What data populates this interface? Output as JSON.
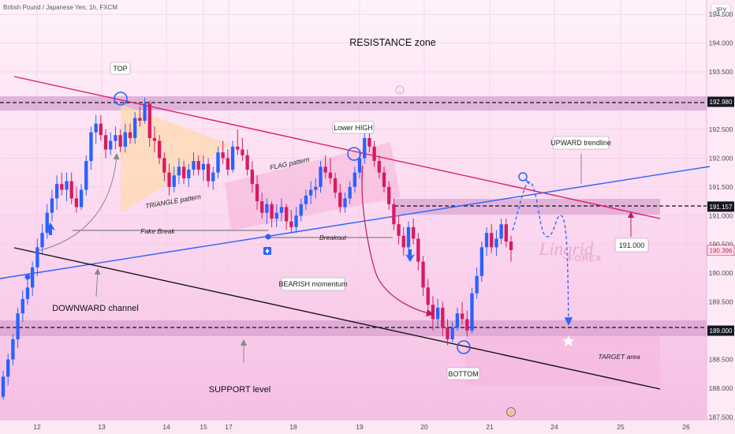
{
  "header": {
    "symbol_title": "British Pound / Japanese Yen, 1h, FXCM"
  },
  "currency_label": "JPY",
  "watermark": {
    "brand": "Lingrid",
    "sub": "FOREX"
  },
  "chart_data": {
    "type": "candlestick",
    "title": "British Pound / Japanese Yen, 1h, FXCM",
    "x_ticks": [
      "12",
      "13",
      "14",
      "15",
      "17",
      "18",
      "19",
      "20",
      "21",
      "24",
      "25",
      "26"
    ],
    "y_ticks": [
      "187.500",
      "188.000",
      "188.500",
      "189.000",
      "189.500",
      "190.000",
      "190.500",
      "191.000",
      "191.500",
      "192.000",
      "192.500",
      "193.000",
      "193.500",
      "194.000",
      "194.500"
    ],
    "ylim": [
      187.45,
      194.75
    ],
    "current_price": "190.396",
    "price_levels": [
      {
        "label": "192.980",
        "value": 192.98
      },
      {
        "label": "191.157",
        "value": 191.157
      },
      {
        "label": "189.000",
        "value": 189.0
      }
    ],
    "series": [
      {
        "values": [
          [
            187.85,
            188.3,
            187.8,
            188.2
          ],
          [
            188.2,
            188.6,
            188.05,
            188.5
          ],
          [
            188.5,
            188.95,
            188.4,
            188.85
          ],
          [
            188.85,
            189.4,
            188.7,
            189.3
          ],
          [
            189.3,
            189.7,
            189.15,
            189.55
          ],
          [
            189.55,
            189.9,
            189.45,
            189.75
          ],
          [
            189.75,
            190.2,
            189.6,
            190.1
          ],
          [
            190.1,
            190.6,
            189.95,
            190.45
          ],
          [
            190.45,
            190.85,
            190.35,
            190.7
          ],
          [
            190.7,
            191.2,
            190.6,
            191.05
          ],
          [
            191.05,
            191.45,
            190.9,
            191.3
          ],
          [
            191.3,
            191.7,
            191.1,
            191.55
          ],
          [
            191.55,
            191.75,
            191.35,
            191.45
          ],
          [
            191.45,
            191.75,
            191.25,
            191.6
          ],
          [
            191.6,
            191.75,
            191.2,
            191.3
          ],
          [
            191.3,
            191.5,
            191.05,
            191.15
          ],
          [
            191.15,
            191.55,
            191.1,
            191.45
          ],
          [
            191.45,
            192.05,
            191.35,
            191.95
          ],
          [
            191.95,
            192.55,
            191.8,
            192.45
          ],
          [
            192.45,
            192.75,
            192.25,
            192.6
          ],
          [
            192.6,
            192.75,
            192.3,
            192.4
          ],
          [
            192.4,
            192.5,
            192.0,
            192.15
          ],
          [
            192.15,
            192.45,
            192.05,
            192.3
          ],
          [
            192.3,
            192.55,
            192.15,
            192.4
          ],
          [
            192.4,
            192.5,
            192.1,
            192.2
          ],
          [
            192.2,
            192.6,
            192.1,
            192.45
          ],
          [
            192.45,
            192.6,
            192.25,
            192.35
          ],
          [
            192.35,
            192.8,
            192.25,
            192.7
          ],
          [
            192.7,
            192.9,
            192.55,
            192.65
          ],
          [
            192.65,
            193.05,
            192.6,
            192.95
          ],
          [
            192.95,
            193.0,
            192.2,
            192.35
          ],
          [
            192.35,
            192.55,
            192.1,
            192.3
          ],
          [
            192.3,
            192.4,
            191.9,
            192.0
          ],
          [
            192.0,
            192.1,
            191.6,
            191.75
          ],
          [
            191.75,
            191.9,
            191.35,
            191.5
          ],
          [
            191.5,
            191.85,
            191.4,
            191.7
          ],
          [
            191.7,
            192.0,
            191.55,
            191.85
          ],
          [
            191.85,
            191.95,
            191.55,
            191.65
          ],
          [
            191.65,
            191.9,
            191.5,
            191.8
          ],
          [
            191.8,
            192.1,
            191.7,
            191.95
          ],
          [
            191.95,
            192.05,
            191.7,
            191.8
          ],
          [
            191.8,
            192.05,
            191.6,
            191.9
          ],
          [
            191.9,
            192.0,
            191.5,
            191.6
          ],
          [
            191.6,
            191.85,
            191.45,
            191.75
          ],
          [
            191.75,
            192.2,
            191.65,
            192.1
          ],
          [
            192.1,
            192.3,
            191.9,
            192.0
          ],
          [
            192.0,
            192.15,
            191.7,
            191.8
          ],
          [
            191.8,
            192.3,
            191.75,
            192.2
          ],
          [
            192.2,
            192.5,
            192.05,
            192.15
          ],
          [
            192.15,
            192.35,
            191.95,
            192.05
          ],
          [
            192.05,
            192.15,
            191.7,
            191.8
          ],
          [
            191.8,
            191.95,
            191.4,
            191.55
          ],
          [
            191.55,
            191.7,
            191.1,
            191.25
          ],
          [
            191.25,
            191.4,
            190.95,
            191.05
          ],
          [
            191.05,
            191.3,
            190.85,
            191.2
          ],
          [
            191.2,
            191.25,
            190.8,
            190.95
          ],
          [
            190.95,
            191.2,
            190.8,
            191.05
          ],
          [
            191.05,
            191.3,
            190.9,
            191.15
          ],
          [
            191.15,
            191.2,
            190.75,
            190.9
          ],
          [
            190.9,
            191.1,
            190.7,
            190.8
          ],
          [
            190.8,
            191.15,
            190.7,
            191.0
          ],
          [
            191.0,
            191.3,
            190.9,
            191.2
          ],
          [
            191.2,
            191.45,
            191.1,
            191.35
          ],
          [
            191.35,
            191.6,
            191.2,
            191.45
          ],
          [
            191.45,
            191.65,
            191.3,
            191.5
          ],
          [
            191.5,
            191.95,
            191.4,
            191.85
          ],
          [
            191.85,
            192.05,
            191.65,
            191.75
          ],
          [
            191.75,
            192.0,
            191.55,
            191.65
          ],
          [
            191.65,
            191.75,
            191.3,
            191.4
          ],
          [
            191.4,
            191.55,
            191.05,
            191.15
          ],
          [
            191.15,
            191.4,
            191.05,
            191.3
          ],
          [
            191.3,
            191.6,
            191.2,
            191.5
          ],
          [
            191.5,
            191.85,
            191.4,
            191.75
          ],
          [
            191.75,
            192.1,
            191.65,
            192.0
          ],
          [
            192.0,
            192.45,
            191.9,
            192.35
          ],
          [
            192.35,
            192.5,
            192.1,
            192.2
          ],
          [
            192.2,
            192.3,
            191.85,
            191.95
          ],
          [
            191.95,
            192.05,
            191.65,
            191.75
          ],
          [
            191.75,
            191.85,
            191.4,
            191.5
          ],
          [
            191.5,
            191.6,
            191.1,
            191.2
          ],
          [
            191.2,
            191.3,
            190.75,
            190.85
          ],
          [
            190.85,
            191.0,
            190.5,
            190.65
          ],
          [
            190.65,
            190.8,
            190.3,
            190.45
          ],
          [
            190.45,
            190.9,
            190.3,
            190.8
          ],
          [
            190.8,
            190.95,
            190.5,
            190.6
          ],
          [
            190.6,
            190.7,
            190.05,
            190.2
          ],
          [
            190.2,
            190.3,
            189.6,
            189.75
          ],
          [
            189.75,
            189.9,
            189.3,
            189.45
          ],
          [
            189.45,
            189.6,
            189.0,
            189.2
          ],
          [
            189.2,
            189.55,
            189.05,
            189.4
          ],
          [
            189.4,
            189.5,
            188.9,
            189.05
          ],
          [
            189.05,
            189.2,
            188.75,
            188.85
          ],
          [
            188.85,
            189.15,
            188.8,
            189.05
          ],
          [
            189.05,
            189.4,
            189.0,
            189.3
          ],
          [
            189.3,
            189.5,
            189.1,
            189.2
          ],
          [
            189.2,
            189.35,
            188.9,
            189.0
          ],
          [
            189.0,
            189.75,
            188.95,
            189.65
          ],
          [
            189.65,
            190.1,
            189.55,
            189.95
          ],
          [
            189.95,
            190.55,
            189.85,
            190.45
          ],
          [
            190.45,
            190.8,
            190.3,
            190.7
          ],
          [
            190.7,
            190.85,
            190.35,
            190.45
          ],
          [
            190.45,
            190.75,
            190.3,
            190.6
          ],
          [
            190.6,
            190.95,
            190.5,
            190.85
          ],
          [
            190.85,
            190.95,
            190.45,
            190.55
          ],
          [
            190.55,
            190.65,
            190.2,
            190.4
          ]
        ]
      }
    ],
    "annotations": {
      "resistance": "RESISTANCE zone",
      "top": "TOP",
      "lower_high": "Lower HIGH",
      "triangle": "TRIANGLE pattern",
      "flag": "FLAG pattern",
      "fake_break": "Fake Break",
      "breakout": "Breakout",
      "upward_trendline": "UPWARD trendline",
      "downward_channel": "DOWNWARD channel",
      "bearish": "BEARISH momentum",
      "support": "SUPPORT level",
      "bottom": "BOTTOM",
      "target": "TARGET area",
      "target_price": "191.000"
    }
  }
}
